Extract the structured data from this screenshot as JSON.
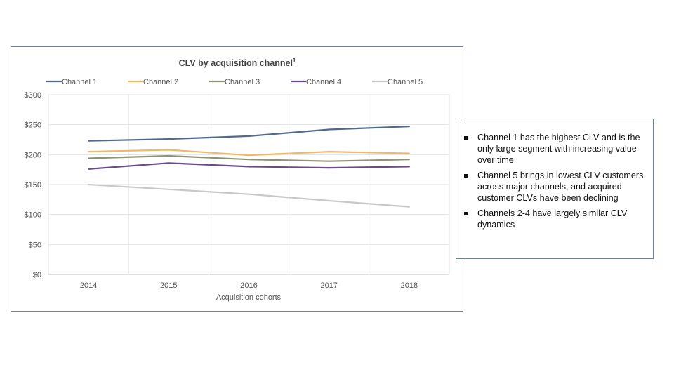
{
  "chart_data": {
    "type": "line",
    "title": "CLV by acquisition channel",
    "title_superscript": "1",
    "xlabel": "Acquisition cohorts",
    "ylabel": "",
    "categories": [
      "2014",
      "2015",
      "2016",
      "2017",
      "2018"
    ],
    "y_ticks": [
      "$0",
      "$50",
      "$100",
      "$150",
      "$200",
      "$250",
      "$300"
    ],
    "ylim": [
      0,
      300
    ],
    "grid": true,
    "legend_position": "top",
    "series": [
      {
        "name": "Channel 1",
        "color": "#4f6b8c",
        "values": [
          223,
          226,
          231,
          242,
          247
        ]
      },
      {
        "name": "Channel 2",
        "color": "#f0b86a",
        "values": [
          205,
          208,
          199,
          205,
          202
        ]
      },
      {
        "name": "Channel 3",
        "color": "#8c9474",
        "values": [
          194,
          198,
          192,
          189,
          192
        ]
      },
      {
        "name": "Channel 4",
        "color": "#6b4a8a",
        "values": [
          176,
          186,
          180,
          178,
          180
        ]
      },
      {
        "name": "Channel 5",
        "color": "#c8c8c8",
        "values": [
          150,
          142,
          134,
          123,
          113
        ]
      }
    ]
  },
  "notes": [
    "Channel 1 has the highest CLV and is the only large segment with increasing value over time",
    "Channel 5 brings in lowest CLV customers across major channels, and acquired customer CLVs have been declining",
    "Channels 2-4 have largely similar CLV dynamics"
  ]
}
